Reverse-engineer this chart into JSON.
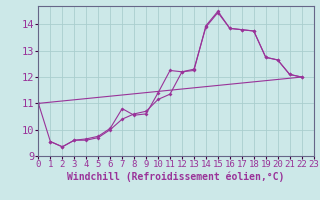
{
  "xlabel": "Windchill (Refroidissement éolien,°C)",
  "xlim": [
    0,
    23
  ],
  "ylim": [
    9,
    14.7
  ],
  "yticks": [
    9,
    10,
    11,
    12,
    13,
    14
  ],
  "xticks": [
    0,
    1,
    2,
    3,
    4,
    5,
    6,
    7,
    8,
    9,
    10,
    11,
    12,
    13,
    14,
    15,
    16,
    17,
    18,
    19,
    20,
    21,
    22,
    23
  ],
  "bg_color": "#cce8e8",
  "grid_color": "#aacece",
  "line_color": "#993399",
  "series1": [
    [
      0,
      11.0
    ],
    [
      1,
      9.55
    ],
    [
      2,
      9.35
    ],
    [
      3,
      9.6
    ],
    [
      4,
      9.6
    ],
    [
      5,
      9.7
    ],
    [
      6,
      10.0
    ],
    [
      7,
      10.4
    ],
    [
      8,
      10.6
    ],
    [
      9,
      10.7
    ],
    [
      10,
      11.15
    ],
    [
      11,
      11.35
    ],
    [
      12,
      12.2
    ],
    [
      13,
      12.25
    ],
    [
      14,
      13.95
    ],
    [
      15,
      14.5
    ],
    [
      16,
      13.85
    ],
    [
      17,
      13.8
    ],
    [
      18,
      13.75
    ],
    [
      19,
      12.75
    ],
    [
      20,
      12.65
    ],
    [
      21,
      12.1
    ],
    [
      22,
      12.0
    ]
  ],
  "series2": [
    [
      1,
      9.55
    ],
    [
      2,
      9.35
    ],
    [
      3,
      9.6
    ],
    [
      4,
      9.65
    ],
    [
      5,
      9.75
    ],
    [
      6,
      10.05
    ],
    [
      7,
      10.8
    ],
    [
      8,
      10.55
    ],
    [
      9,
      10.6
    ],
    [
      10,
      11.4
    ],
    [
      11,
      12.25
    ],
    [
      12,
      12.2
    ],
    [
      13,
      12.3
    ],
    [
      14,
      13.9
    ],
    [
      15,
      14.45
    ],
    [
      16,
      13.85
    ],
    [
      17,
      13.8
    ],
    [
      18,
      13.75
    ],
    [
      19,
      12.75
    ],
    [
      20,
      12.65
    ],
    [
      21,
      12.1
    ],
    [
      22,
      12.0
    ]
  ],
  "series3": [
    [
      0,
      11.0
    ],
    [
      22,
      12.0
    ]
  ],
  "font_size_xlabel": 7,
  "font_size_ytick": 7.5,
  "font_size_xtick": 6.5
}
